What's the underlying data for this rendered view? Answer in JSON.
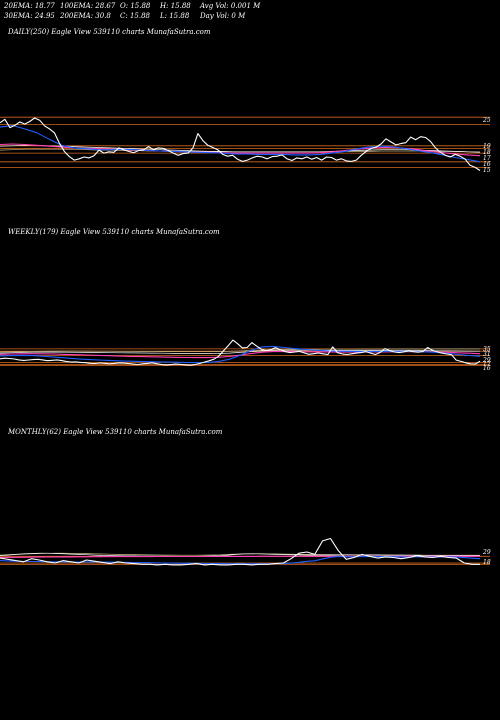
{
  "header": {
    "row1": [
      "20EMA: 18.77",
      "100EMA: 28.67",
      "O: 15.88",
      "H: 15.88",
      "Avg Vol: 0.001 M"
    ],
    "row2": [
      "30EMA: 24.95",
      "200EMA: 30.8",
      "C: 15.88",
      "L: 15.88",
      "Day Vol: 0  M"
    ]
  },
  "colors": {
    "background": "#000000",
    "price": "#ffffff",
    "ema20": "#1f5fff",
    "ema30": "#ff3fb8",
    "ema100": "#ffffff",
    "ema200": "#c9b98a",
    "level": "#d2691e"
  },
  "chart_data": [
    {
      "type": "line",
      "title": "DAILY(250) Eagle  View  539110  charts MunafaSutra.com",
      "x_count": 250,
      "y_ticks": [
        "25",
        "19",
        "18",
        "17",
        "16",
        "15"
      ],
      "ylim": [
        13,
        28
      ],
      "levels": [
        27.5,
        25.8,
        20.9,
        20.3,
        19.2,
        17.2,
        15.9
      ],
      "series": [
        {
          "key": "price",
          "values": [
            26.2,
            27.0,
            25.1,
            25.6,
            26.4,
            25.9,
            26.5,
            27.3,
            26.8,
            25.5,
            24.8,
            23.9,
            21.5,
            19.6,
            18.4,
            17.6,
            17.9,
            18.3,
            18.1,
            18.6,
            19.9,
            19.2,
            19.5,
            19.4,
            20.4,
            20.0,
            19.6,
            19.3,
            19.8,
            19.9,
            20.7,
            20.0,
            20.4,
            20.3,
            19.8,
            19.2,
            18.7,
            19.1,
            19.2,
            20.4,
            23.7,
            22.1,
            21.0,
            20.5,
            20.0,
            18.9,
            18.5,
            18.7,
            17.8,
            17.3,
            17.6,
            18.1,
            18.5,
            18.3,
            17.9,
            18.4,
            18.5,
            18.8,
            17.9,
            17.5,
            18.1,
            17.9,
            18.3,
            17.8,
            18.2,
            17.6,
            18.3,
            18.2,
            17.6,
            17.9,
            17.4,
            17.3,
            17.6,
            18.7,
            19.6,
            20.3,
            20.6,
            21.3,
            22.5,
            21.8,
            21.1,
            21.4,
            21.6,
            22.9,
            22.3,
            23.0,
            22.8,
            21.9,
            20.4,
            19.4,
            18.7,
            18.3,
            18.9,
            18.5,
            17.8,
            16.4,
            15.9,
            15.2
          ]
        },
        {
          "key": "ema20",
          "values": [
            25.2,
            25.6,
            24.8,
            23.9,
            22.4,
            21.0,
            20.4,
            20.2,
            20.0,
            20.0,
            20.1,
            20.0,
            19.8,
            19.7,
            19.6,
            19.5,
            19.4,
            19.3,
            19.2,
            19.0,
            19.0,
            18.9,
            18.9,
            18.9,
            18.8,
            18.8,
            18.9,
            19.2,
            19.6,
            20.2,
            20.6,
            20.8,
            20.6,
            20.2,
            19.7,
            19.3,
            18.8,
            18.2,
            17.7,
            17.2
          ]
        },
        {
          "key": "ema30",
          "values": [
            21.2,
            21.3,
            21.2,
            21.0,
            20.8,
            20.6,
            20.4,
            20.3,
            20.2,
            20.1,
            20.0,
            19.9,
            19.8,
            19.7,
            19.6,
            19.5,
            19.4,
            19.4,
            19.3,
            19.2,
            19.2,
            19.2,
            19.2,
            19.2,
            19.2,
            19.2,
            19.3,
            19.5,
            19.8,
            20.1,
            20.3,
            20.5,
            20.5,
            20.3,
            20.0,
            19.6,
            19.3,
            19.0,
            18.8,
            18.6
          ]
        },
        {
          "key": "ema100",
          "values": [
            20.8,
            20.9,
            21.0,
            21.0,
            20.9,
            20.8,
            20.7,
            20.6,
            20.5,
            20.4,
            20.3,
            20.2,
            20.1,
            20.0,
            19.9,
            19.8,
            19.7,
            19.6,
            19.6,
            19.5,
            19.5,
            19.5,
            19.5,
            19.5,
            19.5,
            19.5,
            19.5,
            19.6,
            19.7,
            19.8,
            19.9,
            20.0,
            20.0,
            20.0,
            19.9,
            19.8,
            19.7,
            19.6,
            19.5,
            19.4
          ]
        },
        {
          "key": "ema200",
          "values": [
            19.9,
            20.0,
            20.1,
            20.1,
            20.1,
            20.1,
            20.0,
            20.0,
            19.9,
            19.9,
            19.8,
            19.8,
            19.7,
            19.7,
            19.6,
            19.6,
            19.6,
            19.5,
            19.5,
            19.5,
            19.5,
            19.5,
            19.5,
            19.5,
            19.5,
            19.5,
            19.5,
            19.5,
            19.6,
            19.6,
            19.6,
            19.7,
            19.7,
            19.7,
            19.7,
            19.6,
            19.6,
            19.6,
            19.5,
            19.5
          ]
        }
      ]
    },
    {
      "type": "line",
      "title": "WEEKLY(179) Eagle  View  539110  charts MunafaSutra.com",
      "x_count": 179,
      "y_ticks": [
        "35",
        "31",
        "29",
        "17",
        "16"
      ],
      "ylim": [
        12,
        52
      ],
      "levels": [
        30.8,
        28.7,
        24.9,
        18.8,
        16.9,
        15.9
      ],
      "series": [
        {
          "key": "price",
          "values": [
            22.0,
            22.5,
            22.2,
            21.8,
            21.0,
            20.5,
            20.9,
            21.2,
            21.5,
            21.0,
            20.3,
            20.6,
            21.0,
            20.4,
            19.5,
            19.0,
            19.2,
            18.8,
            18.5,
            18.0,
            17.8,
            18.2,
            18.0,
            17.5,
            17.9,
            18.3,
            18.1,
            17.8,
            17.2,
            16.9,
            17.5,
            17.9,
            18.4,
            17.6,
            16.8,
            16.5,
            16.8,
            17.2,
            17.0,
            16.6,
            16.3,
            16.9,
            17.8,
            19.0,
            20.2,
            21.6,
            24.2,
            29.0,
            33.5,
            38.6,
            35.4,
            31.6,
            32.0,
            36.4,
            33.2,
            30.5,
            29.4,
            30.2,
            31.8,
            30.0,
            28.4,
            27.5,
            28.0,
            28.6,
            27.2,
            26.0,
            26.5,
            27.1,
            26.4,
            25.8,
            32.5,
            27.5,
            26.3,
            25.8,
            26.4,
            27.0,
            27.5,
            28.4,
            27.0,
            25.8,
            27.6,
            31.0,
            29.2,
            28.0,
            27.5,
            28.2,
            29.1,
            28.3,
            27.8,
            28.5,
            32.0,
            29.5,
            28.1,
            27.0,
            26.2,
            25.6,
            20.8,
            19.6,
            18.4,
            17.5,
            17.2,
            19.8
          ]
        },
        {
          "key": "ema20",
          "values": [
            24.5,
            24.8,
            25.0,
            24.8,
            24.2,
            23.5,
            22.8,
            22.0,
            21.4,
            20.9,
            20.5,
            20.1,
            19.8,
            19.5,
            19.3,
            19.1,
            18.9,
            18.7,
            18.6,
            18.7,
            19.5,
            21.5,
            25.0,
            29.5,
            32.5,
            33.0,
            32.0,
            31.0,
            30.2,
            29.6,
            29.0,
            28.7,
            28.5,
            28.4,
            28.4,
            28.5,
            28.6,
            28.6,
            28.5,
            28.2,
            27.6,
            26.8,
            25.8,
            24.9,
            24.2
          ]
        },
        {
          "key": "ema30",
          "values": [
            26.0,
            26.2,
            26.4,
            26.5,
            26.4,
            26.2,
            25.9,
            25.6,
            25.3,
            25.0,
            24.7,
            24.4,
            24.1,
            23.9,
            23.7,
            23.5,
            23.3,
            23.1,
            23.0,
            23.0,
            23.3,
            24.0,
            25.2,
            26.6,
            27.8,
            28.4,
            28.5,
            28.4,
            28.2,
            28.1,
            28.0,
            27.9,
            27.9,
            27.9,
            28.0,
            28.1,
            28.2,
            28.3,
            28.3,
            28.2,
            28.0,
            27.7,
            27.3,
            26.9,
            26.5
          ]
        },
        {
          "key": "ema100",
          "values": [
            27.0,
            27.3,
            27.6,
            27.8,
            27.9,
            27.9,
            27.8,
            27.7,
            27.6,
            27.5,
            27.4,
            27.3,
            27.2,
            27.1,
            27.0,
            26.9,
            26.8,
            26.7,
            26.6,
            26.6,
            26.7,
            27.0,
            27.6,
            28.3,
            29.0,
            29.4,
            29.6,
            29.6,
            29.6,
            29.5,
            29.4,
            29.4,
            29.3,
            29.3,
            29.3,
            29.3,
            29.3,
            29.3,
            29.3,
            29.2,
            29.1,
            29.0,
            28.9,
            28.8,
            28.7
          ]
        },
        {
          "key": "ema200",
          "values": [
            28.0,
            28.2,
            28.4,
            28.6,
            28.7,
            28.8,
            28.8,
            28.8,
            28.8,
            28.7,
            28.7,
            28.6,
            28.6,
            28.5,
            28.5,
            28.4,
            28.4,
            28.3,
            28.3,
            28.3,
            28.4,
            28.6,
            28.9,
            29.3,
            29.7,
            30.0,
            30.2,
            30.3,
            30.4,
            30.4,
            30.5,
            30.5,
            30.5,
            30.6,
            30.6,
            30.6,
            30.7,
            30.7,
            30.7,
            30.7,
            30.8,
            30.8,
            30.8,
            30.8,
            30.8
          ]
        }
      ]
    },
    {
      "type": "line",
      "title": "MONTHLY(62) Eagle  View  539110  charts MunafaSutra.com",
      "x_count": 62,
      "y_ticks": [
        "29",
        "18"
      ],
      "ylim": [
        5,
        80
      ],
      "levels": [
        29.0,
        18.0,
        16.0
      ],
      "series": [
        {
          "key": "price",
          "values": [
            26.0,
            24.0,
            22.0,
            20.0,
            25.0,
            23.0,
            20.0,
            18.0,
            22.0,
            20.0,
            18.0,
            23.0,
            21.0,
            19.0,
            17.0,
            20.0,
            18.0,
            17.0,
            16.0,
            16.0,
            15.0,
            16.0,
            15.0,
            15.0,
            16.0,
            17.0,
            15.0,
            16.0,
            15.0,
            15.0,
            16.0,
            16.0,
            15.0,
            16.0,
            16.0,
            17.0,
            18.0,
            25.0,
            34.0,
            36.0,
            32.0,
            54.0,
            58.0,
            38.0,
            24.0,
            27.0,
            32.0,
            29.0,
            26.0,
            28.0,
            27.0,
            25.0,
            27.0,
            30.0,
            28.0,
            27.0,
            29.0,
            27.0,
            26.0,
            18.0,
            16.0,
            16.0
          ]
        },
        {
          "key": "ema20",
          "values": [
            22.0,
            21.5,
            21.0,
            20.5,
            20.5,
            20.4,
            20.2,
            20.0,
            20.0,
            19.8,
            19.6,
            19.8,
            19.8,
            19.6,
            19.3,
            19.3,
            19.1,
            18.9,
            18.7,
            18.5,
            18.2,
            18.0,
            17.8,
            17.6,
            17.5,
            17.5,
            17.3,
            17.2,
            17.0,
            16.9,
            16.9,
            16.9,
            16.8,
            16.8,
            16.8,
            16.9,
            17.0,
            17.8,
            19.2,
            20.8,
            21.6,
            24.7,
            27.5,
            28.6,
            28.2,
            28.1,
            28.5,
            28.6,
            28.4,
            28.4,
            28.3,
            28.0,
            27.9,
            28.1,
            28.1,
            28.0,
            28.1,
            28.0,
            27.9,
            26.9,
            25.9,
            25.0
          ]
        },
        {
          "key": "ema30",
          "values": [
            27.0,
            27.2,
            27.3,
            27.4,
            27.6,
            27.7,
            27.8,
            27.9,
            28.0,
            28.0,
            28.1,
            28.2,
            28.3,
            28.3,
            28.4,
            28.4,
            28.4,
            28.5,
            28.5,
            28.5,
            28.6,
            28.6,
            28.6,
            28.6,
            28.6,
            28.6,
            28.7,
            28.7,
            28.7,
            28.8,
            28.8,
            28.8,
            28.8,
            28.9,
            28.9,
            28.9,
            29.0,
            29.0,
            29.0,
            29.0,
            29.0,
            29.0,
            29.0,
            29.0,
            29.0,
            29.0,
            29.0,
            29.0,
            29.0,
            29.0,
            29.0,
            29.0,
            29.0,
            29.0,
            29.0,
            29.0,
            29.0,
            29.0,
            29.0,
            29.0,
            29.0,
            29.0
          ]
        },
        {
          "key": "ema100",
          "values": [
            30.0,
            31.0,
            32.0,
            33.0,
            33.5,
            34.0,
            34.0,
            33.6,
            33.0,
            32.5,
            32.0,
            31.5,
            31.0,
            30.5,
            30.2,
            30.0,
            29.8,
            29.6,
            29.4,
            29.3,
            29.2,
            29.1,
            29.0,
            29.0,
            29.0,
            29.0,
            29.2,
            29.5,
            30.0,
            31.0,
            32.0,
            32.8,
            33.0,
            32.8,
            32.4,
            32.0,
            31.6,
            31.4,
            31.2,
            31.0,
            31.0,
            31.0,
            31.0,
            31.1,
            31.2,
            31.3,
            31.3,
            31.3,
            31.2,
            31.1,
            31.0,
            30.9,
            30.8,
            30.7,
            30.6,
            30.5,
            30.4,
            30.4,
            30.3,
            30.3,
            30.3,
            30.3
          ]
        },
        {
          "key": "ema200",
          "values": [
            31.0,
            31.5,
            32.0,
            32.5,
            33.0,
            33.5,
            33.8,
            34.0,
            34.0,
            33.8,
            33.6,
            33.3,
            33.0,
            32.7,
            32.4,
            32.1,
            31.9,
            31.7,
            31.5,
            31.3,
            31.1,
            31.0,
            30.9,
            30.8,
            30.8,
            30.8,
            30.9,
            31.1,
            31.4,
            32.0,
            32.6,
            33.0,
            33.2,
            33.2,
            33.0,
            32.8,
            32.6,
            32.4,
            32.2,
            32.0,
            31.9,
            31.8,
            31.7,
            31.6,
            31.5,
            31.4,
            31.3,
            31.2,
            31.1,
            31.0,
            31.0,
            30.9,
            30.9,
            30.9,
            30.8,
            30.8,
            30.8,
            30.8,
            30.8,
            30.8,
            30.8,
            30.8
          ]
        }
      ]
    }
  ]
}
